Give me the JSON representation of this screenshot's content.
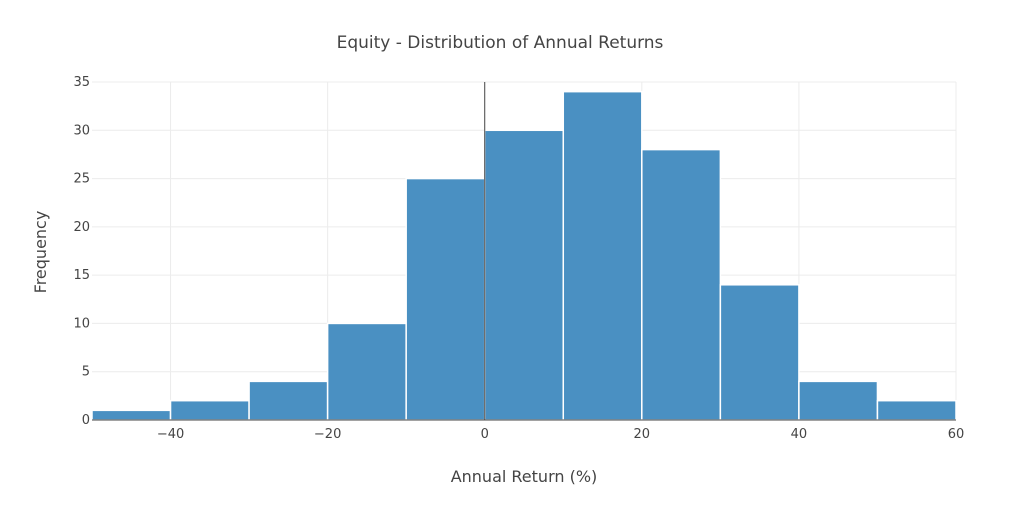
{
  "chart_data": {
    "type": "bar",
    "title": "Equity - Distribution of Annual Returns",
    "xlabel": "Annual Return (%)",
    "ylabel": "Frequency",
    "xlim": [
      -50,
      60
    ],
    "ylim": [
      0,
      35
    ],
    "x_ticks": [
      -40,
      -20,
      0,
      20,
      40,
      60
    ],
    "x_tick_labels": [
      "−40",
      "−20",
      "0",
      "20",
      "40",
      "60"
    ],
    "y_ticks": [
      0,
      5,
      10,
      15,
      20,
      25,
      30,
      35
    ],
    "y_tick_labels": [
      "0",
      "5",
      "10",
      "15",
      "20",
      "25",
      "30",
      "35"
    ],
    "bins": [
      {
        "start": -50,
        "end": -40,
        "count": 1
      },
      {
        "start": -40,
        "end": -30,
        "count": 2
      },
      {
        "start": -30,
        "end": -20,
        "count": 4
      },
      {
        "start": -20,
        "end": -10,
        "count": 10
      },
      {
        "start": -10,
        "end": 0,
        "count": 25
      },
      {
        "start": 0,
        "end": 10,
        "count": 30
      },
      {
        "start": 10,
        "end": 20,
        "count": 34
      },
      {
        "start": 20,
        "end": 30,
        "count": 28
      },
      {
        "start": 30,
        "end": 40,
        "count": 14
      },
      {
        "start": 40,
        "end": 50,
        "count": 4
      },
      {
        "start": 50,
        "end": 60,
        "count": 2
      }
    ],
    "bar_color": "#4a90c2",
    "grid": true,
    "legend": "none"
  }
}
